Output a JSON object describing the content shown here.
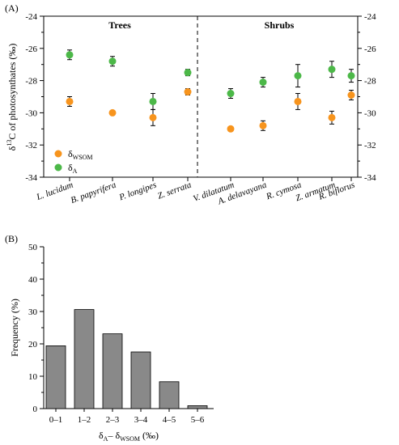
{
  "chart_data": [
    {
      "panel_label": "(A)",
      "type": "scatter",
      "ylabel_main": "δ",
      "ylabel_sup": "13",
      "ylabel_rest": "C of photosynthates (‰)",
      "ylim": [
        -34,
        -24
      ],
      "yticks": [
        -34,
        -32,
        -30,
        -28,
        -26,
        -24
      ],
      "group_labels": [
        "Trees",
        "Shrubs"
      ],
      "categories": [
        "L. lucidum",
        "B. papyrifera",
        "P. longipes",
        "Z. serrata",
        "V. dilatatum",
        "A. delavayana",
        "R. cymosa",
        "Z. armatum",
        "R. biflorus"
      ],
      "series": [
        {
          "name_main": "δ",
          "name_sub": "WSOM",
          "color": "#f7941d",
          "values": [
            -29.3,
            -30.0,
            -30.3,
            -28.7,
            -31.0,
            -30.8,
            -29.3,
            -30.3,
            -28.9
          ],
          "errors": [
            0.3,
            0.1,
            0.5,
            0.2,
            0.1,
            0.3,
            0.5,
            0.4,
            0.3
          ]
        },
        {
          "name_main": "δ",
          "name_sub": "A",
          "color": "#4cb848",
          "values": [
            -26.4,
            -26.8,
            -29.3,
            -27.5,
            -28.8,
            -28.1,
            -27.7,
            -27.3,
            -27.7
          ],
          "errors": [
            0.3,
            0.3,
            0.5,
            0.2,
            0.3,
            0.3,
            0.7,
            0.5,
            0.4
          ]
        }
      ],
      "legend_position": "bottom-left"
    },
    {
      "panel_label": "(B)",
      "type": "bar",
      "categories": [
        "0–1",
        "1–2",
        "2–3",
        "3–4",
        "4–5",
        "5–6"
      ],
      "values": [
        19.4,
        30.6,
        23.1,
        17.5,
        8.3,
        0.9
      ],
      "ylabel": "Frequency (%)",
      "xlabel_main1": "δ",
      "xlabel_sub1": "A",
      "xlabel_mid": "– δ",
      "xlabel_sub2": "WSOM",
      "xlabel_rest": " (‰)",
      "ylim": [
        0,
        50
      ],
      "yticks": [
        0,
        10,
        20,
        30,
        40,
        50
      ],
      "bar_color": "#898989"
    }
  ]
}
